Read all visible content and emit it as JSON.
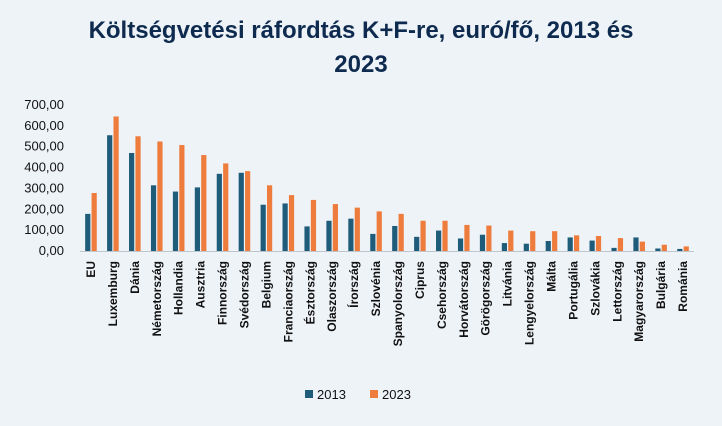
{
  "chart_data": {
    "type": "bar",
    "title_lines": [
      "Költségvetési ráfordtás K+F-re, euró/fő, 2013 és",
      "2023"
    ],
    "categories": [
      "EU",
      "Luxemburg",
      "Dánia",
      "Németország",
      "Hollandia",
      "Ausztria",
      "Finnország",
      "Svédország",
      "Belgium",
      "Franciaország",
      "Észtország",
      "Olaszország",
      "Írország",
      "Szlovénia",
      "Spanyolország",
      "Ciprus",
      "Csehország",
      "Horvátország",
      "Görögország",
      "Litvánia",
      "Lengyelország",
      "Málta",
      "Portugália",
      "Szlovákia",
      "Lettország",
      "Magyarország",
      "Bulgária",
      "Románia"
    ],
    "series": [
      {
        "name": "2013",
        "color": "#1f5c7a",
        "values": [
          178,
          555,
          470,
          315,
          285,
          305,
          370,
          375,
          222,
          228,
          118,
          145,
          155,
          82,
          120,
          68,
          98,
          60,
          78,
          38,
          35,
          48,
          65,
          50,
          15,
          65,
          12,
          10
        ]
      },
      {
        "name": "2023",
        "color": "#ee7c3d",
        "values": [
          278,
          645,
          550,
          525,
          508,
          460,
          420,
          383,
          315,
          268,
          245,
          225,
          208,
          190,
          178,
          145,
          145,
          125,
          122,
          98,
          95,
          95,
          75,
          72,
          62,
          45,
          30,
          22
        ]
      }
    ],
    "y_ticks": [
      "0,00",
      "100,00",
      "200,00",
      "300,00",
      "400,00",
      "500,00",
      "600,00",
      "700,00"
    ],
    "ylim": [
      0,
      700
    ],
    "grid": false,
    "legend_position": "bottom"
  }
}
